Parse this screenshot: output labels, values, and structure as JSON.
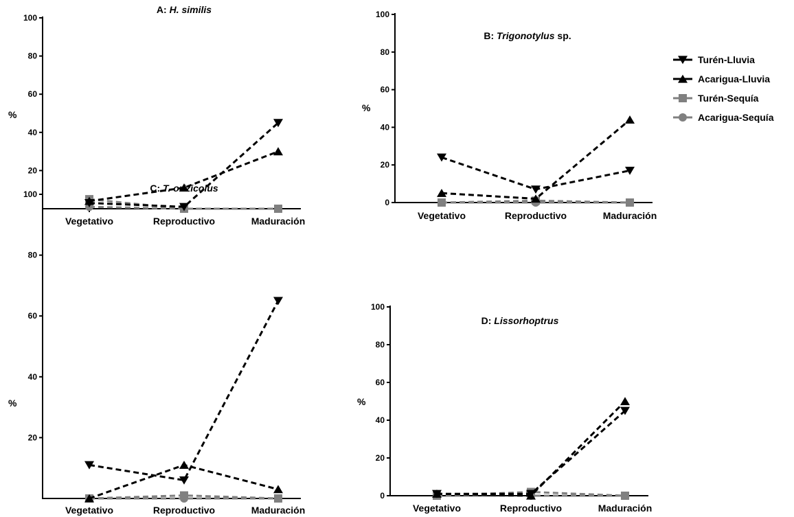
{
  "chart_data": [
    {
      "type": "line",
      "title_prefix": "A: ",
      "title_italic": "H. similis",
      "title_suffix": "",
      "ylabel": "%",
      "xlabel": "",
      "categories": [
        "Vegetativo",
        "Reproductivo",
        "Maduración"
      ],
      "ylim": [
        0,
        100
      ],
      "yticks": [
        "20",
        "40",
        "60",
        "80",
        "100"
      ],
      "series": [
        {
          "name": "Turén-Lluvia",
          "values": [
            3,
            1,
            45
          ]
        },
        {
          "name": "Acarigua-Lluvia",
          "values": [
            4,
            11,
            30
          ]
        },
        {
          "name": "Turén-Sequía",
          "values": [
            5,
            0,
            0
          ]
        },
        {
          "name": "Acarigua-Sequía",
          "values": [
            1,
            0,
            0
          ]
        }
      ]
    },
    {
      "type": "line",
      "title_prefix": "B: ",
      "title_italic": "Trigonotylus",
      "title_suffix": " sp.",
      "ylabel": "%",
      "xlabel": "",
      "categories": [
        "Vegetativo",
        "Reproductivo",
        "Maduración"
      ],
      "ylim": [
        0,
        100
      ],
      "yticks": [
        "0",
        "20",
        "40",
        "60",
        "80",
        "100"
      ],
      "series": [
        {
          "name": "Turén-Lluvia",
          "values": [
            24,
            7,
            17
          ]
        },
        {
          "name": "Acarigua-Lluvia",
          "values": [
            5,
            2,
            44
          ]
        },
        {
          "name": "Turén-Sequía",
          "values": [
            0,
            1,
            0
          ]
        },
        {
          "name": "Acarigua-Sequía",
          "values": [
            0,
            0,
            0
          ]
        }
      ]
    },
    {
      "type": "line",
      "title_prefix": "C: ",
      "title_italic": "T. orizicolus",
      "title_suffix": "",
      "ylabel": "%",
      "xlabel": "",
      "categories": [
        "Vegetativo",
        "Reproductivo",
        "Maduración"
      ],
      "ylim": [
        0,
        100
      ],
      "yticks": [
        "20",
        "40",
        "60",
        "80",
        "100"
      ],
      "series": [
        {
          "name": "Turén-Lluvia",
          "values": [
            11,
            6,
            65
          ]
        },
        {
          "name": "Acarigua-Lluvia",
          "values": [
            0,
            11,
            3
          ]
        },
        {
          "name": "Turén-Sequía",
          "values": [
            0,
            1,
            0
          ]
        },
        {
          "name": "Acarigua-Sequía",
          "values": [
            0,
            0,
            0
          ]
        }
      ]
    },
    {
      "type": "line",
      "title_prefix": "D: ",
      "title_italic": "Lissorhoptrus",
      "title_suffix": "",
      "ylabel": "%",
      "xlabel": "",
      "categories": [
        "Vegetativo",
        "Reproductivo",
        "Maduración"
      ],
      "ylim": [
        0,
        100
      ],
      "yticks": [
        "0",
        "20",
        "40",
        "60",
        "80",
        "100"
      ],
      "series": [
        {
          "name": "Turén-Lluvia",
          "values": [
            1,
            1,
            45
          ]
        },
        {
          "name": "Acarigua-Lluvia",
          "values": [
            1,
            0,
            50
          ]
        },
        {
          "name": "Turén-Sequía",
          "values": [
            0,
            2,
            0
          ]
        },
        {
          "name": "Acarigua-Sequía",
          "values": [
            0,
            0,
            0
          ]
        }
      ]
    }
  ],
  "legend": {
    "placement": "right of panel B",
    "items": [
      {
        "label": "Turén-Lluvia",
        "marker": "triangle-down",
        "color": "#000000",
        "dashed": true
      },
      {
        "label": "Acarigua-Lluvia",
        "marker": "triangle-up",
        "color": "#000000",
        "dashed": true
      },
      {
        "label": "Turén-Sequía",
        "marker": "square",
        "color": "#808080",
        "dashed": false
      },
      {
        "label": "Acarigua-Sequía",
        "marker": "circle",
        "color": "#808080",
        "dashed": false
      }
    ]
  },
  "series_styles": [
    {
      "marker": "triangle-down",
      "color": "#000000"
    },
    {
      "marker": "triangle-up",
      "color": "#000000"
    },
    {
      "marker": "square",
      "color": "#808080"
    },
    {
      "marker": "circle",
      "color": "#808080"
    }
  ]
}
